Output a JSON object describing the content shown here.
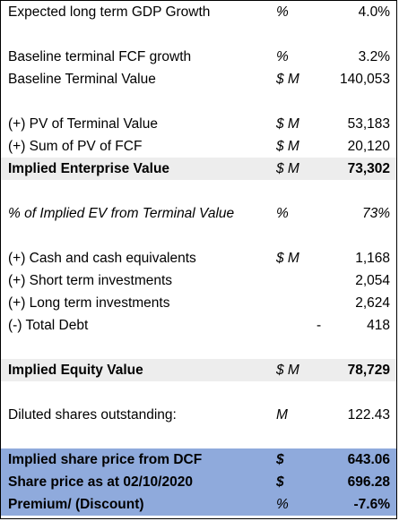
{
  "rows": {
    "gdp_growth": {
      "label": "Expected long term GDP Growth",
      "unit": "%",
      "value": "4.0%"
    },
    "fcf_growth": {
      "label": "Baseline terminal FCF growth",
      "unit": "%",
      "value": "3.2%"
    },
    "terminal_value": {
      "label": "Baseline Terminal Value",
      "unit": "$ M",
      "value": "140,053"
    },
    "pv_terminal": {
      "label": "(+) PV of Terminal Value",
      "unit": "$ M",
      "value": "53,183"
    },
    "pv_fcf": {
      "label": "(+) Sum of PV of FCF",
      "unit": "$ M",
      "value": "20,120"
    },
    "enterprise_value": {
      "label": "Implied Enterprise Value",
      "unit": "$ M",
      "value": "73,302"
    },
    "pct_ev_terminal": {
      "label": "% of Implied EV from Terminal Value",
      "unit": "%",
      "value": "73%"
    },
    "cash": {
      "label": "(+) Cash and cash equivalents",
      "unit": "$ M",
      "value": "1,168"
    },
    "short_term": {
      "label": "(+) Short term investments",
      "unit": "",
      "value": "2,054"
    },
    "long_term": {
      "label": "(+) Long term investments",
      "unit": "",
      "value": "2,624"
    },
    "total_debt": {
      "label": "(-) Total Debt",
      "dash": "-",
      "value": "418"
    },
    "equity_value": {
      "label": "Implied Equity Value",
      "unit": "$ M",
      "value": "78,729"
    },
    "diluted_shares": {
      "label": "Diluted shares outstanding:",
      "unit": "M",
      "value": "122.43"
    },
    "share_price_dcf": {
      "label": "Implied share price from DCF",
      "unit": "$",
      "value": "643.06"
    },
    "share_price_actual": {
      "label": "Share price as at 02/10/2020",
      "unit": "$",
      "value": "696.28"
    },
    "premium": {
      "label": "Premium/ (Discount)",
      "unit": "%",
      "value": "-7.6%"
    }
  },
  "colors": {
    "shaded_row": "#ededed",
    "summary_block": "#8faadc"
  }
}
